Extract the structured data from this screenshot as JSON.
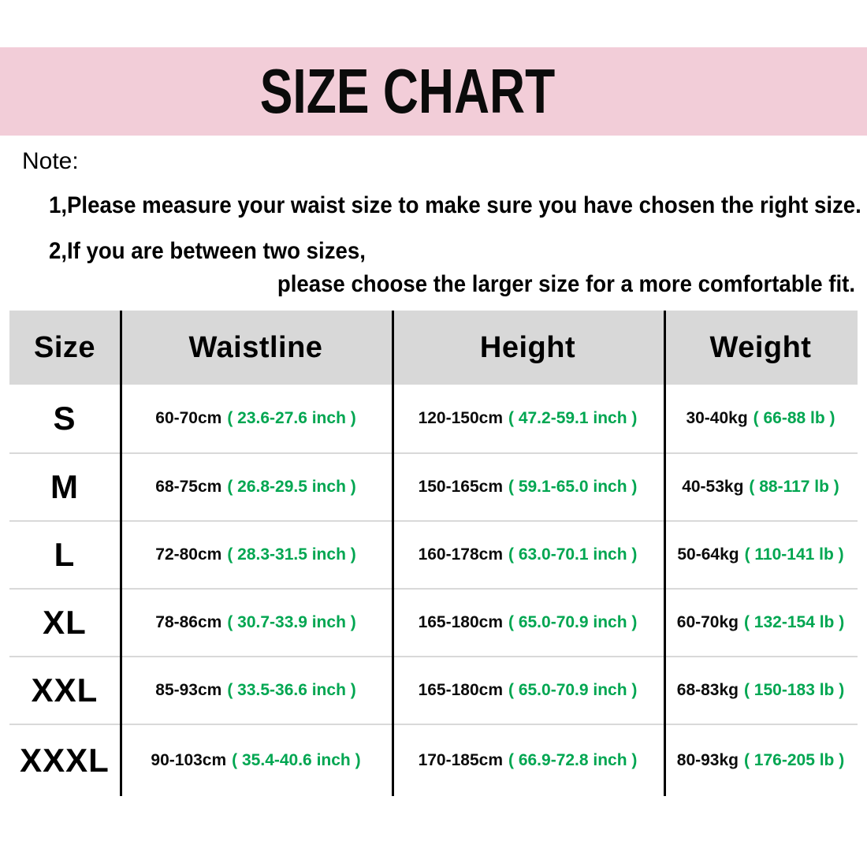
{
  "title": "SIZE CHART",
  "note": {
    "label": "Note:",
    "line1": "1,Please measure your waist size to make sure you have chosen the right size.",
    "line2": "2,If you are between two sizes,",
    "line3": "please choose the larger size for a more comfortable fit."
  },
  "table": {
    "headers": [
      "Size",
      "Waistline",
      "Height",
      "Weight"
    ],
    "rows": [
      {
        "size": "S",
        "waistline": {
          "metric": "60-70cm",
          "imperial": "( 23.6-27.6 inch )"
        },
        "height": {
          "metric": "120-150cm",
          "imperial": "( 47.2-59.1 inch )"
        },
        "weight": {
          "metric": "30-40kg",
          "imperial": "( 66-88 lb )"
        }
      },
      {
        "size": "M",
        "waistline": {
          "metric": "68-75cm",
          "imperial": "( 26.8-29.5 inch )"
        },
        "height": {
          "metric": "150-165cm",
          "imperial": "( 59.1-65.0 inch )"
        },
        "weight": {
          "metric": "40-53kg",
          "imperial": "( 88-117 lb )"
        }
      },
      {
        "size": "L",
        "waistline": {
          "metric": "72-80cm",
          "imperial": "( 28.3-31.5 inch )"
        },
        "height": {
          "metric": "160-178cm",
          "imperial": "( 63.0-70.1 inch )"
        },
        "weight": {
          "metric": "50-64kg",
          "imperial": "( 110-141 lb )"
        }
      },
      {
        "size": "XL",
        "waistline": {
          "metric": "78-86cm",
          "imperial": "( 30.7-33.9 inch )"
        },
        "height": {
          "metric": "165-180cm",
          "imperial": "( 65.0-70.9 inch )"
        },
        "weight": {
          "metric": "60-70kg",
          "imperial": "( 132-154 lb )"
        }
      },
      {
        "size": "XXL",
        "waistline": {
          "metric": "85-93cm",
          "imperial": "( 33.5-36.6 inch )"
        },
        "height": {
          "metric": "165-180cm",
          "imperial": "( 65.0-70.9 inch )"
        },
        "weight": {
          "metric": "68-83kg",
          "imperial": "( 150-183 lb )"
        }
      },
      {
        "size": "XXXL",
        "waistline": {
          "metric": "90-103cm",
          "imperial": "( 35.4-40.6 inch )"
        },
        "height": {
          "metric": "170-185cm",
          "imperial": "( 66.9-72.8 inch )"
        },
        "weight": {
          "metric": "80-93kg",
          "imperial": "( 176-205 lb )"
        }
      }
    ]
  },
  "colors": {
    "banner_pink": "#F2CDD8",
    "header_gray": "#D8D8D8",
    "row_divider": "#D9D9D9",
    "accent_green": "#00A651",
    "text_black": "#000000"
  }
}
